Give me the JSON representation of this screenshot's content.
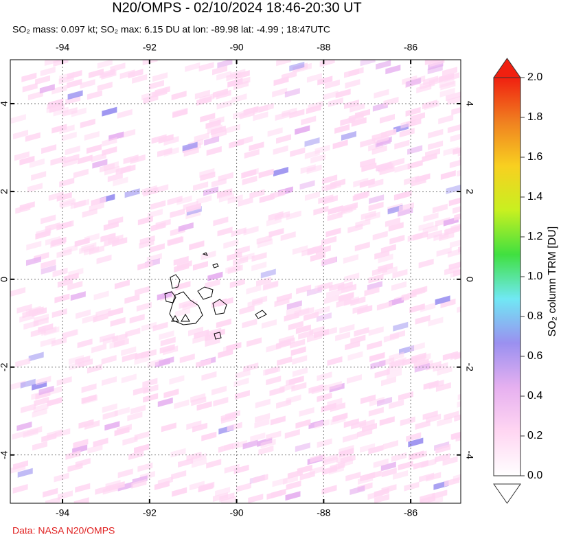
{
  "header": {
    "title": "N20/OMPS - 02/10/2024 18:46-20:30 UT",
    "subtitle": "SO₂ mass: 0.097 kt; SO₂ max: 6.15 DU at lon: -89.98 lat: -4.99 ; 18:47UTC"
  },
  "map": {
    "xlim": [
      -95.2,
      -84.85
    ],
    "ylim": [
      -5.1,
      5.0
    ],
    "xticks": [
      -94,
      -92,
      -90,
      -88,
      -86
    ],
    "yticks": [
      -4,
      -2,
      0,
      2,
      4
    ],
    "grid": true
  },
  "colorbar": {
    "label": "SO₂ column TRM [DU]",
    "lim": [
      0,
      2
    ],
    "ticks": [
      {
        "value": 0,
        "label": "0.0"
      },
      {
        "value": 0.2,
        "label": "0.2"
      },
      {
        "value": 0.4,
        "label": "0.4"
      },
      {
        "value": 0.6,
        "label": "0.6"
      },
      {
        "value": 0.8,
        "label": "0.8"
      },
      {
        "value": 1.0,
        "label": "1.0"
      },
      {
        "value": 1.2,
        "label": "1.2"
      },
      {
        "value": 1.4,
        "label": "1.4"
      },
      {
        "value": 1.6,
        "label": "1.6"
      },
      {
        "value": 1.8,
        "label": "1.8"
      },
      {
        "value": 2.0,
        "label": "2.0"
      }
    ],
    "colors": [
      "#ffffff",
      "#ffd6f2",
      "#e6b0f0",
      "#9a90f0",
      "#70e8f4",
      "#40e040",
      "#c8f020",
      "#f8d020",
      "#f08020",
      "#f02010"
    ]
  },
  "credit": "Data: NASA N20/OMPS"
}
